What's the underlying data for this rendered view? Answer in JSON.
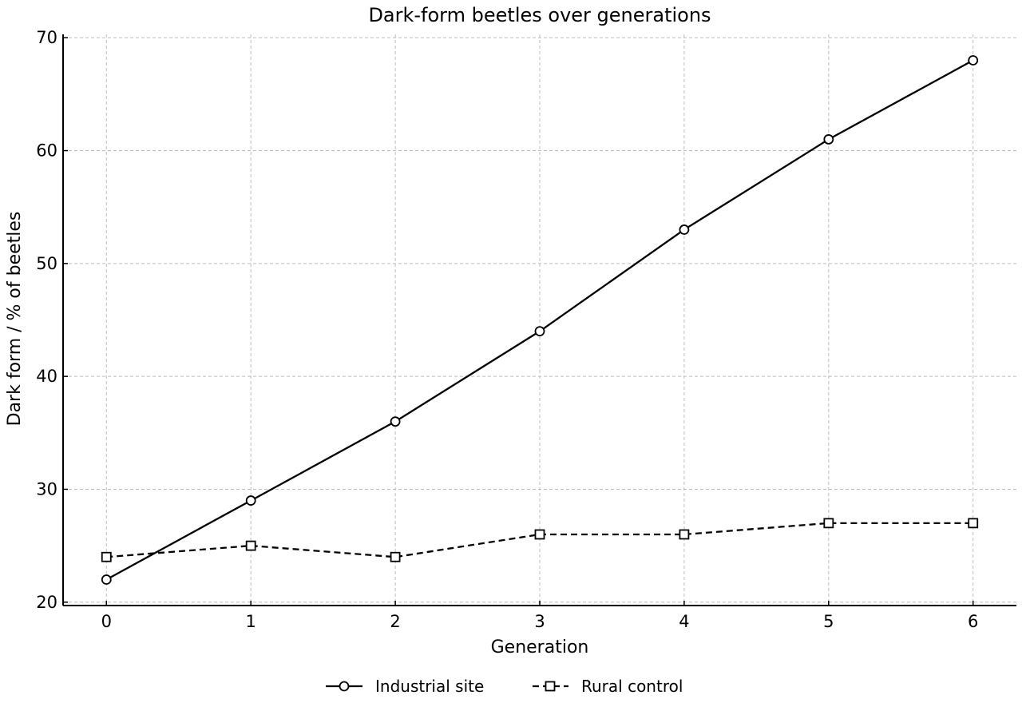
{
  "chart_data": {
    "type": "line",
    "title": "Dark-form beetles over generations",
    "xlabel": "Generation",
    "ylabel": "Dark form / % of beetles",
    "x": [
      0,
      1,
      2,
      3,
      4,
      5,
      6
    ],
    "xlim": [
      -0.3,
      6.3
    ],
    "ylim": [
      19.7,
      70.3
    ],
    "xticks": [
      0,
      1,
      2,
      3,
      4,
      5,
      6
    ],
    "yticks": [
      20,
      30,
      40,
      50,
      60,
      70
    ],
    "grid": true,
    "legend_position": "bottom-center",
    "series": [
      {
        "name": "Industrial site",
        "values": [
          22,
          29,
          36,
          44,
          53,
          61,
          68
        ],
        "marker": "circle",
        "line_style": "solid",
        "color": "#000000"
      },
      {
        "name": "Rural control",
        "values": [
          24,
          25,
          24,
          26,
          26,
          27,
          27
        ],
        "marker": "square",
        "line_style": "dashed",
        "color": "#000000"
      }
    ]
  }
}
